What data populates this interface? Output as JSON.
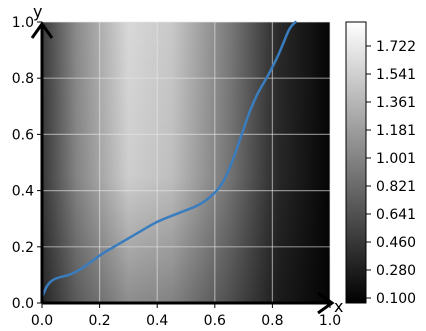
{
  "chart_data": {
    "type": "line",
    "title": "",
    "xlabel": "x",
    "ylabel": "y",
    "xlim": [
      0.0,
      1.0
    ],
    "ylim": [
      0.0,
      1.0
    ],
    "xticks": [
      0.0,
      0.2,
      0.4,
      0.6,
      0.8,
      1.0
    ],
    "yticks": [
      0.0,
      0.2,
      0.4,
      0.6,
      0.8,
      1.0
    ],
    "xtick_labels": [
      "0.0",
      "0.2",
      "0.4",
      "0.6",
      "0.8",
      "1.0"
    ],
    "ytick_labels": [
      "0.0",
      "0.2",
      "0.4",
      "0.6",
      "0.8",
      "1.0"
    ],
    "grid": true,
    "line_color": "#3a7dbf",
    "background": {
      "type": "heatmap",
      "colormap": "gray",
      "description_values": "brightest near x=0.3 at top, dark toward right and bottom-left"
    },
    "colorbar": {
      "ticks": [
        "1.722",
        "1.541",
        "1.361",
        "1.181",
        "1.001",
        "0.821",
        "0.641",
        "0.460",
        "0.280",
        "0.100"
      ],
      "vmin": 0.1,
      "vmax": 1.9
    },
    "series": [
      {
        "x": [
          0.0,
          0.02,
          0.05,
          0.1,
          0.15,
          0.2,
          0.25,
          0.3,
          0.35,
          0.4,
          0.45,
          0.5,
          0.55,
          0.6,
          0.63,
          0.66,
          0.68,
          0.7,
          0.72,
          0.75,
          0.78,
          0.8,
          0.82,
          0.84,
          0.86,
          0.88
        ],
        "y": [
          0.02,
          0.07,
          0.09,
          0.1,
          0.13,
          0.17,
          0.2,
          0.23,
          0.26,
          0.29,
          0.31,
          0.33,
          0.35,
          0.39,
          0.43,
          0.5,
          0.56,
          0.62,
          0.68,
          0.75,
          0.8,
          0.84,
          0.88,
          0.93,
          0.98,
          1.0
        ]
      }
    ]
  }
}
